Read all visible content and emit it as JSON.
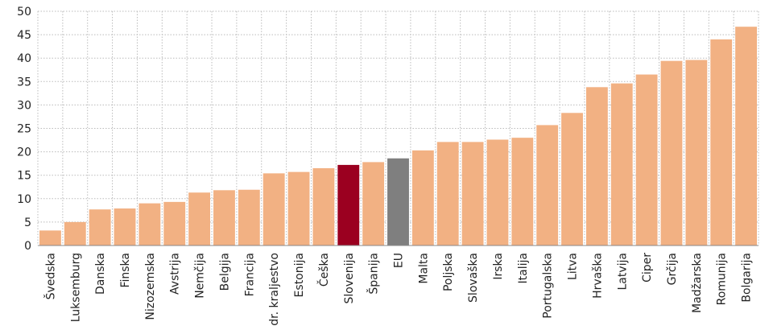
{
  "chart_data": {
    "type": "bar",
    "categories": [
      "Švedska",
      "Luksemburg",
      "Danska",
      "Finska",
      "Nizozemska",
      "Avstrija",
      "Nemčija",
      "Belgija",
      "Francija",
      "Zdr. kraljestvo",
      "Estonija",
      "Češka",
      "Slovenija",
      "Španija",
      "EU",
      "Malta",
      "Poljska",
      "Slovaška",
      "Irska",
      "Italija",
      "Portugalska",
      "Litva",
      "Hrvaška",
      "Latvija",
      "Ciper",
      "Grčija",
      "Madžarska",
      "Romunija",
      "Bolgarija"
    ],
    "values": [
      3.2,
      5.0,
      7.7,
      7.9,
      9.0,
      9.3,
      11.3,
      11.8,
      11.9,
      15.4,
      15.7,
      16.5,
      17.2,
      17.8,
      18.6,
      20.3,
      22.1,
      22.1,
      22.6,
      23.0,
      25.7,
      28.3,
      33.8,
      34.6,
      36.5,
      39.4,
      39.6,
      44.0,
      46.7
    ],
    "ylim": [
      0,
      50
    ],
    "yticks": [
      0,
      5,
      10,
      15,
      20,
      25,
      30,
      35,
      40,
      45,
      50
    ],
    "grid": true,
    "title": "",
    "xlabel": "",
    "ylabel": "",
    "colors": {
      "default": "#F2B183",
      "highlight": "#9B0020",
      "reference": "#7F7F7F",
      "grid": "#BBBBBB",
      "axis": "#888888"
    },
    "highlight_category": "Slovenija",
    "reference_category": "EU"
  }
}
